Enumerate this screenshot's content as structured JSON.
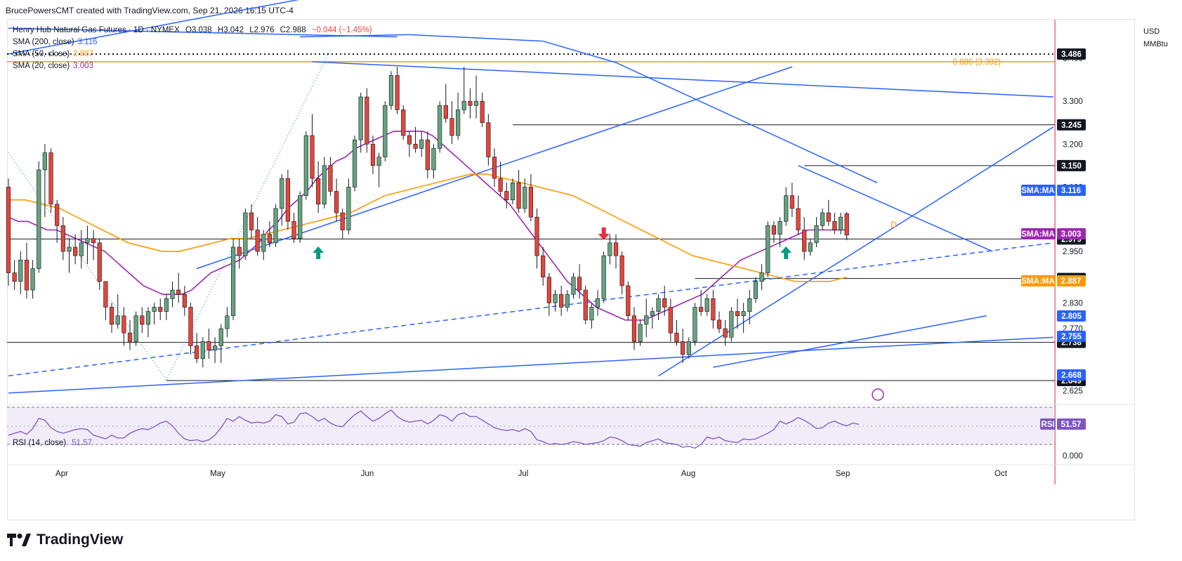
{
  "caption": "BrucePowersCMT created with TradingView.com, Sep 21, 2026 16:15 UTC-4",
  "brand": "TradingView",
  "currency": "USD",
  "unit": "MMBtu",
  "symbol_line": {
    "name": "Henry Hub Natural Gas Futures · 1D · NYMEX",
    "open": "O3.038",
    "high": "H3.042",
    "low": "L2.976",
    "close": "C2.988",
    "change": "−0.044 (−1.45%)"
  },
  "legend": {
    "sma200_label": "SMA (200, close)",
    "sma200_value": "3.116",
    "sma50_label": "SMA (50, close)",
    "sma50_value": "2.887",
    "sma20_label": "SMA (20, close)",
    "sma20_value": "3.003",
    "rsi_label": "RSI (14, close)",
    "rsi_value": "51.57"
  },
  "colors": {
    "up": "#66a37e",
    "down": "#e2463b",
    "sma20": "#9c27b0",
    "sma50": "#ff9800",
    "trend": "#2962ff",
    "fib": "#ff9800",
    "level": "#131722",
    "rsi": "#7e57c2",
    "rsi_band": "#ede7f6",
    "arrow_up": "#089981",
    "arrow_down": "#e03045"
  },
  "chart_data": {
    "type": "candlestick",
    "title": "Henry Hub Natural Gas Futures · 1D · NYMEX",
    "x_labels": [
      "Apr",
      "May",
      "Jun",
      "Jul",
      "Aug",
      "Sep",
      "Oct"
    ],
    "y_ticks": [
      "3.400",
      "3.300",
      "3.200",
      "3.100",
      "2.950",
      "2.830",
      "2.770",
      "2.625"
    ],
    "y_range": [
      2.6,
      3.49
    ],
    "candles": [
      [
        3.1,
        3.12,
        2.87,
        2.9
      ],
      [
        2.9,
        2.93,
        2.86,
        2.88
      ],
      [
        2.88,
        2.95,
        2.85,
        2.93
      ],
      [
        2.93,
        2.97,
        2.84,
        2.86
      ],
      [
        2.86,
        2.93,
        2.84,
        2.91
      ],
      [
        2.91,
        3.16,
        2.9,
        3.14
      ],
      [
        3.14,
        3.2,
        3.03,
        3.18
      ],
      [
        3.18,
        3.19,
        3.04,
        3.06
      ],
      [
        3.06,
        3.07,
        2.97,
        3.01
      ],
      [
        3.01,
        3.03,
        2.93,
        2.95
      ],
      [
        2.95,
        2.98,
        2.9,
        2.96
      ],
      [
        2.96,
        2.99,
        2.92,
        2.94
      ],
      [
        2.94,
        3.0,
        2.91,
        2.97
      ],
      [
        2.97,
        3.01,
        2.92,
        2.98
      ],
      [
        2.98,
        3.0,
        2.93,
        2.97
      ],
      [
        2.97,
        2.98,
        2.86,
        2.88
      ],
      [
        2.88,
        2.88,
        2.79,
        2.82
      ],
      [
        2.82,
        2.83,
        2.76,
        2.78
      ],
      [
        2.78,
        2.85,
        2.77,
        2.8
      ],
      [
        2.8,
        2.82,
        2.73,
        2.76
      ],
      [
        2.76,
        2.79,
        2.72,
        2.74
      ],
      [
        2.74,
        2.81,
        2.73,
        2.8
      ],
      [
        2.8,
        2.82,
        2.76,
        2.78
      ],
      [
        2.78,
        2.82,
        2.75,
        2.81
      ],
      [
        2.81,
        2.83,
        2.78,
        2.82
      ],
      [
        2.82,
        2.84,
        2.79,
        2.81
      ],
      [
        2.81,
        2.85,
        2.79,
        2.84
      ],
      [
        2.84,
        2.88,
        2.82,
        2.86
      ],
      [
        2.86,
        2.9,
        2.83,
        2.85
      ],
      [
        2.85,
        2.87,
        2.8,
        2.82
      ],
      [
        2.82,
        2.83,
        2.71,
        2.73
      ],
      [
        2.73,
        2.76,
        2.69,
        2.7
      ],
      [
        2.7,
        2.75,
        2.68,
        2.74
      ],
      [
        2.74,
        2.77,
        2.7,
        2.72
      ],
      [
        2.72,
        2.75,
        2.69,
        2.73
      ],
      [
        2.73,
        2.78,
        2.69,
        2.77
      ],
      [
        2.77,
        2.82,
        2.75,
        2.8
      ],
      [
        2.8,
        2.98,
        2.79,
        2.96
      ],
      [
        2.96,
        2.98,
        2.91,
        2.94
      ],
      [
        2.94,
        3.05,
        2.93,
        3.04
      ],
      [
        3.04,
        3.06,
        2.98,
        3.0
      ],
      [
        3.0,
        3.03,
        2.94,
        2.95
      ],
      [
        2.95,
        3.0,
        2.93,
        2.99
      ],
      [
        2.99,
        3.02,
        2.96,
        2.97
      ],
      [
        2.97,
        3.06,
        2.96,
        3.05
      ],
      [
        3.05,
        3.13,
        3.01,
        3.12
      ],
      [
        3.12,
        3.14,
        3.0,
        3.02
      ],
      [
        3.02,
        3.04,
        2.97,
        2.98
      ],
      [
        2.98,
        3.09,
        2.97,
        3.08
      ],
      [
        3.08,
        3.23,
        3.07,
        3.22
      ],
      [
        3.22,
        3.27,
        3.1,
        3.12
      ],
      [
        3.12,
        3.16,
        3.04,
        3.06
      ],
      [
        3.06,
        3.17,
        3.05,
        3.15
      ],
      [
        3.15,
        3.17,
        3.08,
        3.09
      ],
      [
        3.09,
        3.12,
        3.02,
        3.04
      ],
      [
        3.04,
        3.05,
        2.98,
        3.0
      ],
      [
        3.0,
        3.12,
        2.99,
        3.1
      ],
      [
        3.1,
        3.22,
        3.09,
        3.21
      ],
      [
        3.21,
        3.32,
        3.18,
        3.31
      ],
      [
        3.31,
        3.33,
        3.18,
        3.2
      ],
      [
        3.2,
        3.22,
        3.13,
        3.15
      ],
      [
        3.15,
        3.18,
        3.1,
        3.17
      ],
      [
        3.17,
        3.3,
        3.16,
        3.29
      ],
      [
        3.29,
        3.37,
        3.28,
        3.36
      ],
      [
        3.36,
        3.38,
        3.27,
        3.28
      ],
      [
        3.28,
        3.29,
        3.21,
        3.22
      ],
      [
        3.22,
        3.23,
        3.17,
        3.2
      ],
      [
        3.2,
        3.24,
        3.18,
        3.19
      ],
      [
        3.19,
        3.23,
        3.17,
        3.21
      ],
      [
        3.21,
        3.23,
        3.12,
        3.14
      ],
      [
        3.14,
        3.2,
        3.12,
        3.19
      ],
      [
        3.19,
        3.3,
        3.18,
        3.29
      ],
      [
        3.29,
        3.34,
        3.25,
        3.26
      ],
      [
        3.26,
        3.3,
        3.2,
        3.22
      ],
      [
        3.22,
        3.32,
        3.21,
        3.28
      ],
      [
        3.28,
        3.38,
        3.27,
        3.3
      ],
      [
        3.3,
        3.33,
        3.26,
        3.29
      ],
      [
        3.29,
        3.36,
        3.26,
        3.3
      ],
      [
        3.3,
        3.32,
        3.24,
        3.25
      ],
      [
        3.25,
        3.27,
        3.15,
        3.17
      ],
      [
        3.17,
        3.19,
        3.1,
        3.12
      ],
      [
        3.12,
        3.16,
        3.08,
        3.09
      ],
      [
        3.09,
        3.11,
        3.05,
        3.07
      ],
      [
        3.07,
        3.12,
        3.06,
        3.11
      ],
      [
        3.11,
        3.14,
        3.04,
        3.05
      ],
      [
        3.05,
        3.12,
        3.04,
        3.1
      ],
      [
        3.1,
        3.13,
        3.02,
        3.03
      ],
      [
        3.03,
        3.05,
        2.91,
        2.94
      ],
      [
        2.94,
        2.96,
        2.87,
        2.89
      ],
      [
        2.89,
        2.9,
        2.8,
        2.83
      ],
      [
        2.83,
        2.86,
        2.81,
        2.85
      ],
      [
        2.85,
        2.87,
        2.8,
        2.82
      ],
      [
        2.82,
        2.86,
        2.81,
        2.85
      ],
      [
        2.85,
        2.9,
        2.84,
        2.89
      ],
      [
        2.89,
        2.92,
        2.84,
        2.86
      ],
      [
        2.86,
        2.87,
        2.78,
        2.79
      ],
      [
        2.79,
        2.83,
        2.77,
        2.82
      ],
      [
        2.82,
        2.86,
        2.8,
        2.84
      ],
      [
        2.84,
        2.95,
        2.83,
        2.94
      ],
      [
        2.94,
        2.99,
        2.92,
        2.97
      ],
      [
        2.97,
        2.99,
        2.91,
        2.94
      ],
      [
        2.94,
        2.95,
        2.85,
        2.87
      ],
      [
        2.87,
        2.88,
        2.79,
        2.8
      ],
      [
        2.8,
        2.82,
        2.72,
        2.74
      ],
      [
        2.74,
        2.79,
        2.73,
        2.78
      ],
      [
        2.78,
        2.84,
        2.75,
        2.8
      ],
      [
        2.8,
        2.82,
        2.77,
        2.81
      ],
      [
        2.81,
        2.85,
        2.79,
        2.84
      ],
      [
        2.84,
        2.87,
        2.8,
        2.82
      ],
      [
        2.82,
        2.84,
        2.74,
        2.76
      ],
      [
        2.76,
        2.79,
        2.73,
        2.74
      ],
      [
        2.74,
        2.77,
        2.69,
        2.71
      ],
      [
        2.71,
        2.75,
        2.7,
        2.74
      ],
      [
        2.74,
        2.83,
        2.73,
        2.82
      ],
      [
        2.82,
        2.86,
        2.8,
        2.81
      ],
      [
        2.81,
        2.85,
        2.8,
        2.84
      ],
      [
        2.84,
        2.86,
        2.77,
        2.79
      ],
      [
        2.79,
        2.81,
        2.76,
        2.77
      ],
      [
        2.77,
        2.79,
        2.73,
        2.75
      ],
      [
        2.75,
        2.82,
        2.74,
        2.81
      ],
      [
        2.81,
        2.84,
        2.77,
        2.8
      ],
      [
        2.8,
        2.83,
        2.76,
        2.81
      ],
      [
        2.81,
        2.86,
        2.78,
        2.84
      ],
      [
        2.84,
        2.89,
        2.83,
        2.88
      ],
      [
        2.88,
        2.92,
        2.86,
        2.9
      ],
      [
        2.9,
        3.02,
        2.89,
        3.01
      ],
      [
        3.01,
        3.02,
        2.97,
        2.99
      ],
      [
        2.99,
        3.03,
        2.96,
        3.02
      ],
      [
        3.02,
        3.1,
        3.01,
        3.08
      ],
      [
        3.08,
        3.11,
        3.03,
        3.05
      ],
      [
        3.05,
        3.08,
        2.99,
        3.0
      ],
      [
        3.0,
        3.03,
        2.93,
        2.95
      ],
      [
        2.95,
        2.98,
        2.94,
        2.97
      ],
      [
        2.97,
        3.03,
        2.96,
        3.01
      ],
      [
        3.01,
        3.05,
        3.0,
        3.04
      ],
      [
        3.04,
        3.07,
        3.01,
        3.02
      ],
      [
        3.02,
        3.04,
        2.99,
        3.0
      ],
      [
        3.0,
        3.04,
        2.99,
        3.03
      ],
      [
        3.038,
        3.042,
        2.976,
        2.988
      ]
    ],
    "sma20": [
      3.03,
      3.02,
      3.02,
      3.01,
      3.0,
      3.0,
      2.99,
      2.98,
      2.97,
      2.96,
      2.95,
      2.93,
      2.91,
      2.89,
      2.87,
      2.86,
      2.85,
      2.85,
      2.85,
      2.86,
      2.88,
      2.9,
      2.91,
      2.92,
      2.93,
      2.95,
      2.97,
      3.0,
      3.02,
      3.05,
      3.07,
      3.09,
      3.12,
      3.14,
      3.16,
      3.17,
      3.19,
      3.2,
      3.21,
      3.22,
      3.23,
      3.23,
      3.23,
      3.23,
      3.22,
      3.2,
      3.18,
      3.16,
      3.14,
      3.12,
      3.1,
      3.08,
      3.06,
      3.03,
      3.0,
      2.97,
      2.94,
      2.91,
      2.88,
      2.86,
      2.84,
      2.82,
      2.81,
      2.8,
      2.79,
      2.79,
      2.79,
      2.8,
      2.81,
      2.82,
      2.83,
      2.84,
      2.85,
      2.87,
      2.89,
      2.91,
      2.93,
      2.94,
      2.95,
      2.96,
      2.97,
      2.98,
      2.99,
      3.0,
      3.0,
      3.0,
      3.0,
      3.0
    ],
    "sma50": [
      3.07,
      3.07,
      3.06,
      3.05,
      3.03,
      3.01,
      2.99,
      2.97,
      2.96,
      2.95,
      2.95,
      2.96,
      2.97,
      2.98,
      2.98,
      2.99,
      3.0,
      3.01,
      3.02,
      3.03,
      3.04,
      3.06,
      3.08,
      3.09,
      3.1,
      3.11,
      3.12,
      3.13,
      3.13,
      3.12,
      3.11,
      3.1,
      3.09,
      3.08,
      3.06,
      3.04,
      3.02,
      3.0,
      2.98,
      2.96,
      2.94,
      2.93,
      2.92,
      2.91,
      2.9,
      2.89,
      2.88,
      2.88,
      2.88,
      2.89
    ],
    "rsi": [
      40,
      42,
      44,
      41,
      47,
      58,
      56,
      48,
      44,
      42,
      44,
      46,
      47,
      46,
      40,
      38,
      36,
      40,
      37,
      37,
      42,
      45,
      47,
      46,
      49,
      53,
      55,
      50,
      42,
      36,
      34,
      35,
      33,
      35,
      40,
      48,
      58,
      55,
      60,
      56,
      53,
      54,
      53,
      55,
      62,
      60,
      52,
      54,
      63,
      64,
      60,
      55,
      58,
      53,
      50,
      49,
      56,
      62,
      66,
      60,
      55,
      58,
      63,
      67,
      60,
      56,
      54,
      55,
      56,
      52,
      56,
      62,
      60,
      55,
      62,
      64,
      60,
      60,
      56,
      52,
      48,
      46,
      45,
      46,
      44,
      47,
      44,
      35,
      33,
      30,
      31,
      30,
      31,
      33,
      32,
      30,
      31,
      32,
      34,
      38,
      37,
      34,
      30,
      29,
      28,
      32,
      34,
      36,
      32,
      31,
      30,
      27,
      28,
      26,
      30,
      38,
      36,
      38,
      34,
      33,
      32,
      36,
      35,
      36,
      39,
      42,
      46,
      55,
      52,
      55,
      59,
      56,
      52,
      47,
      48,
      53,
      55,
      52,
      50,
      53,
      51.57
    ],
    "rsi_levels": [
      70,
      50,
      30
    ],
    "horizontal_levels": [
      "3.245",
      "3.150",
      "2.979",
      "2.887",
      "2.738",
      "2.649"
    ],
    "fib_level": {
      "label": "0.886 (3.392)",
      "value": 3.392
    },
    "ma_tags": [
      {
        "label": "SMA:MA",
        "value": "3.116"
      },
      {
        "label": "SMA:MA",
        "value": "3.003"
      },
      {
        "label": "SMA:MA",
        "value": "2.887"
      }
    ],
    "price_tags": [
      "3.486",
      "2.805",
      "2.755",
      "2.668"
    ],
    "current_price": "2.979",
    "rsi_axis": "0.000",
    "rsi_tag": {
      "label": "RSI",
      "value": "51.57"
    },
    "marker": "D"
  }
}
